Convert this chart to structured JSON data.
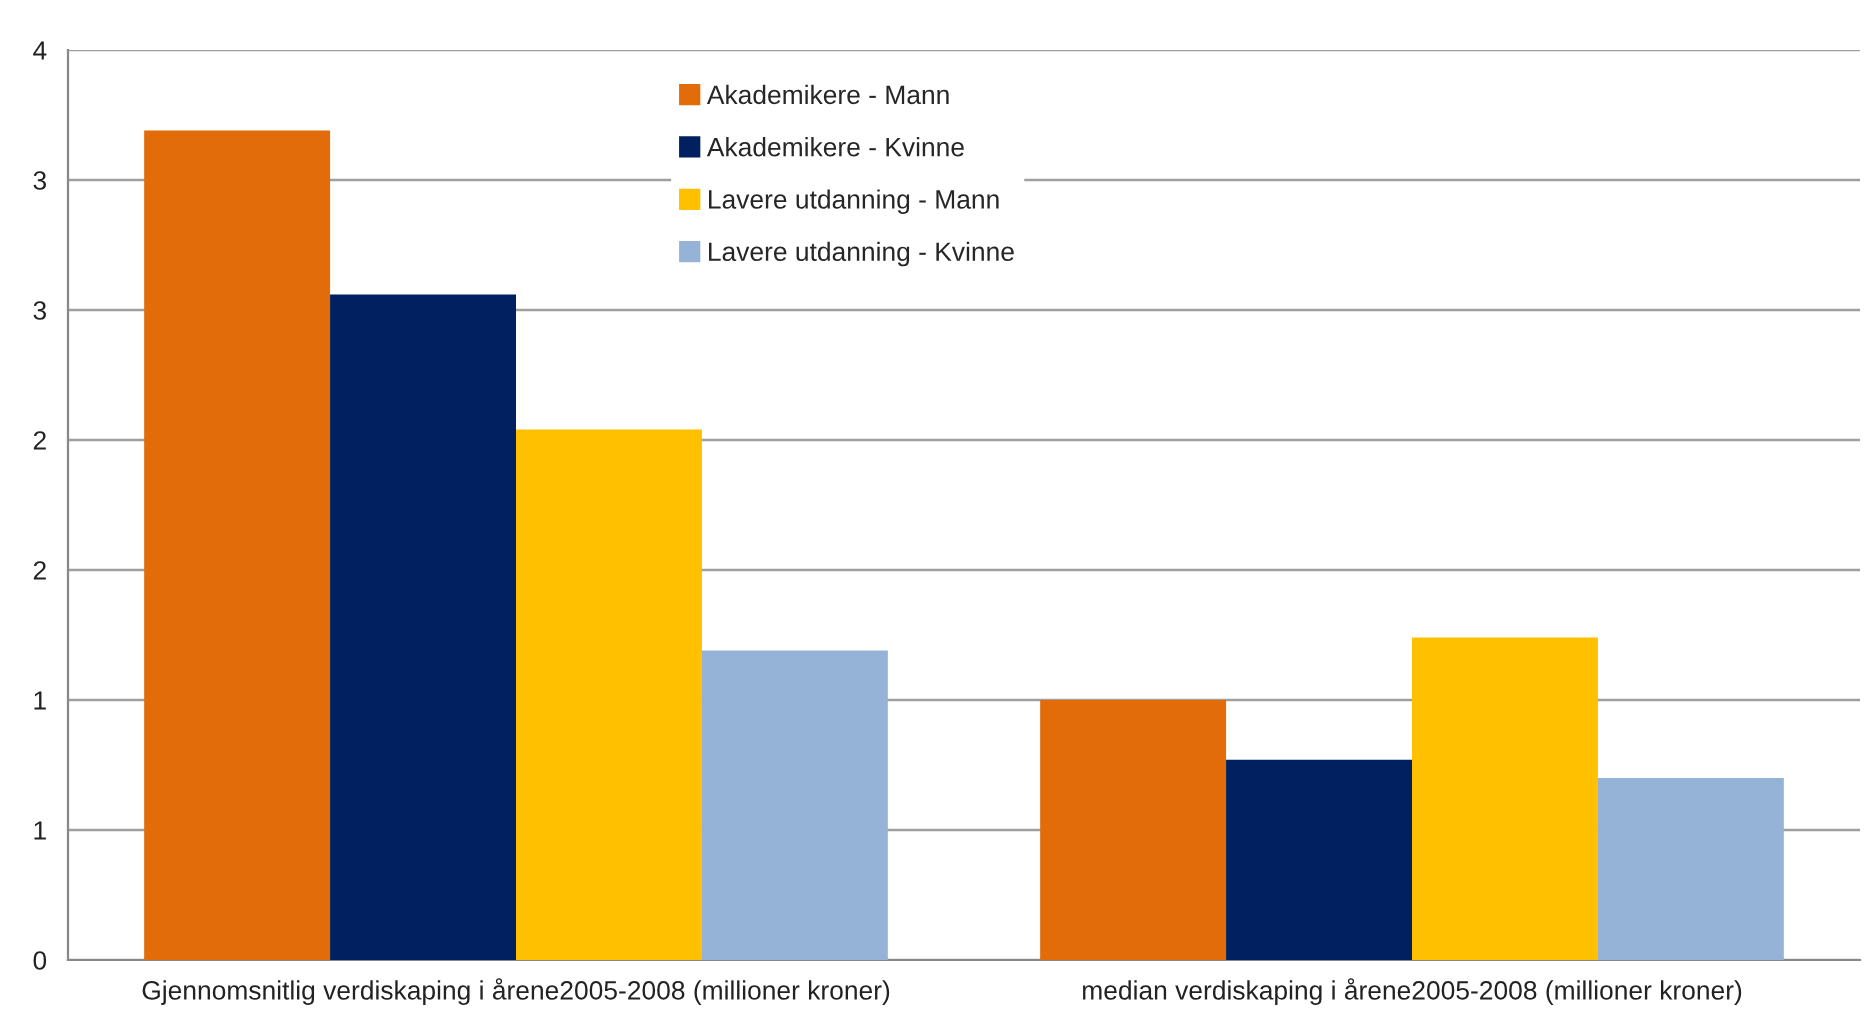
{
  "chart_data": {
    "type": "bar",
    "categories": [
      "Gjennomsnitlig verdiskaping i årene2005-2008 (millioner kroner)",
      "median verdiskaping i årene2005-2008 (millioner kroner)"
    ],
    "series": [
      {
        "name": "Akademikere - Mann",
        "color": "#e36c0a",
        "values": [
          3.19,
          1.0
        ]
      },
      {
        "name": "Akademikere - Kvinne",
        "color": "#002060",
        "values": [
          2.56,
          0.77
        ]
      },
      {
        "name": "Lavere utdanning - Mann",
        "color": "#ffc000",
        "values": [
          2.04,
          1.24
        ]
      },
      {
        "name": "Lavere utdanning - Kvinne",
        "color": "#95b3d7",
        "values": [
          1.19,
          0.7
        ]
      }
    ],
    "ylim": [
      0,
      3.5
    ],
    "yticks": [
      0,
      {
        "value": 0.5,
        "label": "1"
      },
      1,
      {
        "value": 1.5,
        "label": "2"
      },
      2,
      {
        "value": 2.5,
        "label": "3"
      },
      3,
      {
        "value": 3.5,
        "label": "4"
      }
    ],
    "grid": "y",
    "legend": "top"
  }
}
